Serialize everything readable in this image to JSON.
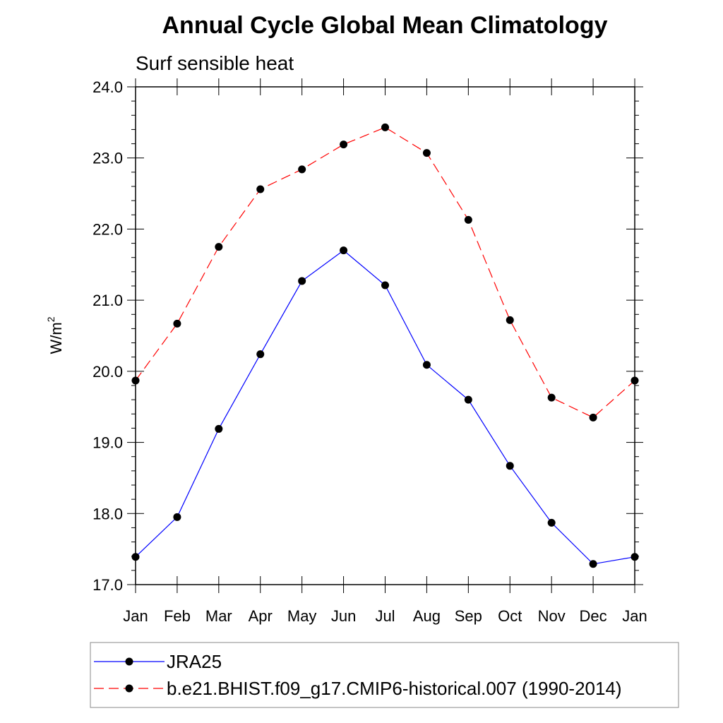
{
  "chart_data": {
    "type": "line",
    "title": "Annual Cycle Global Mean Climatology",
    "subtitle": "Surf sensible heat",
    "ylabel_base": "W/m",
    "ylabel_exp": "2",
    "ylim": [
      17.0,
      24.0
    ],
    "yticks": [
      "17.0",
      "18.0",
      "19.0",
      "20.0",
      "21.0",
      "22.0",
      "23.0",
      "24.0"
    ],
    "categories": [
      "Jan",
      "Feb",
      "Mar",
      "Apr",
      "May",
      "Jun",
      "Jul",
      "Aug",
      "Sep",
      "Oct",
      "Nov",
      "Dec",
      "Jan"
    ],
    "series": [
      {
        "name": "JRA25",
        "color": "#0000ff",
        "style": "solid",
        "values": [
          17.39,
          17.95,
          19.19,
          20.24,
          21.27,
          21.7,
          21.21,
          20.09,
          19.6,
          18.67,
          17.87,
          17.29,
          17.39
        ]
      },
      {
        "name": "b.e21.BHIST.f09_g17.CMIP6-historical.007 (1990-2014)",
        "color": "#ff0000",
        "style": "dashed",
        "values": [
          19.87,
          20.67,
          21.75,
          22.56,
          22.84,
          23.19,
          23.43,
          23.07,
          22.13,
          20.72,
          19.63,
          19.35,
          19.87
        ]
      }
    ],
    "legend": "bottom"
  }
}
